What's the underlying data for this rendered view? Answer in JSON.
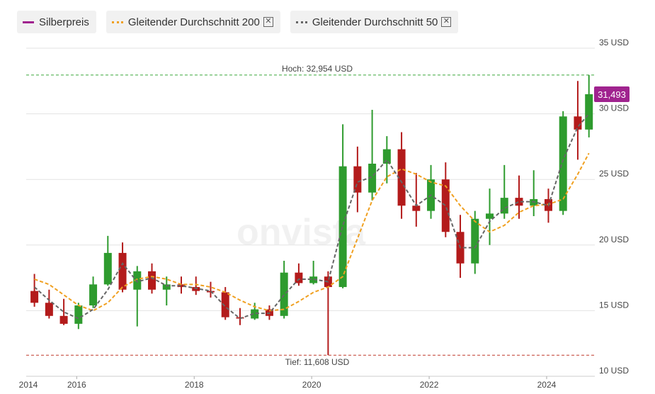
{
  "chart_data": {
    "type": "candlestick",
    "watermark": "onvista",
    "candles": {
      "name": "Silberpreis",
      "color": "#a0238f",
      "up_color": "#2e9b2e",
      "down_color": "#b31b1b",
      "x": [
        2015.28,
        2015.53,
        2015.78,
        2016.03,
        2016.28,
        2016.53,
        2016.78,
        2017.03,
        2017.28,
        2017.53,
        2017.78,
        2018.03,
        2018.28,
        2018.53,
        2018.78,
        2019.03,
        2019.28,
        2019.53,
        2019.78,
        2020.03,
        2020.28,
        2020.53,
        2020.78,
        2021.03,
        2021.28,
        2021.53,
        2021.78,
        2022.03,
        2022.28,
        2022.53,
        2022.78,
        2023.03,
        2023.28,
        2023.53,
        2023.78,
        2024.03,
        2024.28,
        2024.53,
        2024.72
      ],
      "open": [
        16.5,
        15.6,
        14.6,
        14.0,
        15.4,
        17.0,
        19.4,
        16.6,
        18.0,
        16.6,
        17.0,
        16.8,
        16.5,
        16.4,
        14.5,
        14.4,
        15.1,
        14.6,
        17.9,
        17.1,
        17.6,
        16.8,
        26.0,
        24.0,
        26.2,
        27.3,
        23.0,
        22.6,
        25.0,
        21.0,
        18.6,
        22.0,
        22.4,
        23.6,
        23.0,
        23.5,
        22.6,
        29.8,
        28.8
      ],
      "high": [
        17.8,
        16.6,
        15.9,
        15.6,
        17.6,
        20.7,
        20.2,
        18.4,
        18.6,
        17.6,
        17.6,
        17.6,
        17.2,
        16.8,
        15.2,
        15.6,
        15.4,
        18.8,
        18.6,
        18.8,
        18.0,
        29.2,
        27.5,
        30.3,
        28.3,
        28.6,
        25.5,
        26.1,
        26.3,
        22.3,
        22.6,
        24.3,
        26.1,
        25.3,
        25.7,
        24.3,
        30.2,
        32.5,
        32.954
      ],
      "low": [
        15.3,
        14.4,
        13.9,
        13.6,
        15.2,
        16.9,
        16.4,
        13.8,
        16.3,
        15.4,
        16.3,
        16.2,
        16.0,
        14.3,
        13.9,
        14.3,
        14.3,
        14.4,
        16.9,
        17.0,
        11.608,
        16.7,
        22.5,
        23.4,
        24.7,
        22.0,
        21.4,
        22.0,
        20.6,
        17.5,
        17.8,
        20.0,
        22.0,
        22.0,
        22.2,
        21.7,
        22.3,
        26.5,
        28.2
      ],
      "close": [
        15.6,
        14.6,
        14.0,
        15.4,
        17.0,
        19.4,
        16.6,
        18.0,
        16.6,
        17.0,
        16.8,
        16.5,
        16.4,
        14.5,
        14.4,
        15.1,
        14.6,
        17.9,
        17.1,
        17.6,
        16.8,
        26.0,
        24.0,
        26.2,
        27.3,
        23.0,
        22.6,
        25.0,
        21.0,
        18.6,
        22.0,
        22.4,
        23.6,
        23.0,
        23.5,
        22.6,
        29.8,
        28.8,
        31.493
      ]
    },
    "series": [
      {
        "name": "Gleitender Durchschnitt 200",
        "color": "#f0a020",
        "values": [
          17.4,
          17.0,
          16.2,
          15.4,
          15.0,
          15.6,
          16.8,
          17.4,
          17.6,
          17.4,
          17.0,
          17.0,
          16.8,
          16.4,
          15.8,
          15.3,
          15.0,
          15.1,
          15.7,
          16.4,
          16.8,
          17.6,
          20.5,
          23.4,
          25.2,
          25.8,
          25.4,
          24.8,
          24.5,
          23.0,
          21.8,
          21.0,
          21.5,
          22.5,
          23.0,
          23.1,
          23.5,
          25.4,
          27.0
        ]
      },
      {
        "name": "Gleitender Durchschnitt 50",
        "color": "#666666",
        "values": [
          16.8,
          15.8,
          14.9,
          14.4,
          15.1,
          16.6,
          18.6,
          17.2,
          17.5,
          16.9,
          16.9,
          16.7,
          16.5,
          15.3,
          14.4,
          14.8,
          14.8,
          16.2,
          17.4,
          17.4,
          17.2,
          21.5,
          24.8,
          25.2,
          26.5,
          24.8,
          23.0,
          23.8,
          23.0,
          19.8,
          19.8,
          21.8,
          22.8,
          23.3,
          23.3,
          23.0,
          26.5,
          29.0,
          30.0
        ]
      }
    ],
    "high_line": {
      "value": 32.954,
      "label": "Hoch: 32,954 USD",
      "color": "#3aa63a"
    },
    "low_line": {
      "value": 11.608,
      "label": "Tief: 11,608 USD",
      "color": "#c0392b"
    },
    "last_price": {
      "value": 31.493,
      "label": "31,493"
    },
    "x_start_label": "2014",
    "xlim": [
      2015.14,
      2024.82
    ],
    "xticks": [
      2016,
      2018,
      2020,
      2022,
      2024
    ],
    "ylim": [
      10,
      35
    ],
    "yticks": [
      {
        "value": 10,
        "label": "10 USD"
      },
      {
        "value": 15,
        "label": "15 USD"
      },
      {
        "value": 20,
        "label": "20 USD"
      },
      {
        "value": 25,
        "label": "25 USD"
      },
      {
        "value": 30,
        "label": "30 USD"
      },
      {
        "value": 35,
        "label": "35 USD"
      }
    ],
    "grid": true
  }
}
